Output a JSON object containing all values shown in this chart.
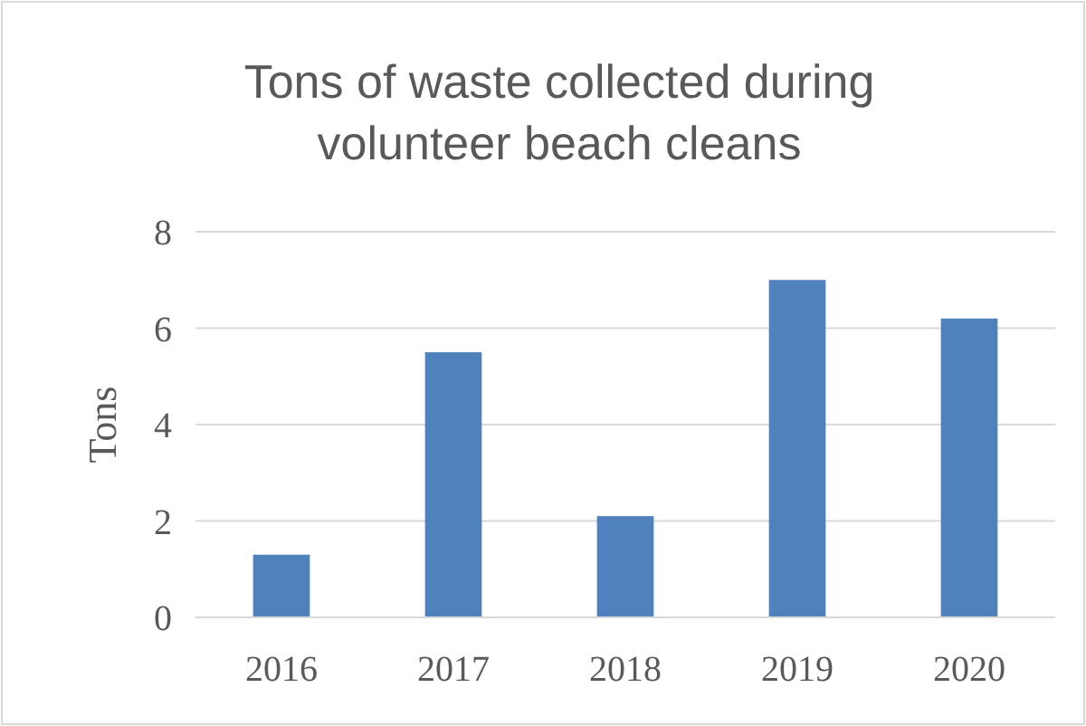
{
  "chart_data": {
    "type": "bar",
    "title": "Tons of waste collected during volunteer beach cleans",
    "ylabel": "Tons",
    "categories": [
      "2016",
      "2017",
      "2018",
      "2019",
      "2020"
    ],
    "values": [
      1.3,
      5.5,
      2.1,
      7.0,
      6.2
    ],
    "color": "#4f81bd",
    "ylim": [
      0,
      8
    ],
    "yticks": [
      0,
      2,
      4,
      6,
      8
    ],
    "grid": "y"
  }
}
